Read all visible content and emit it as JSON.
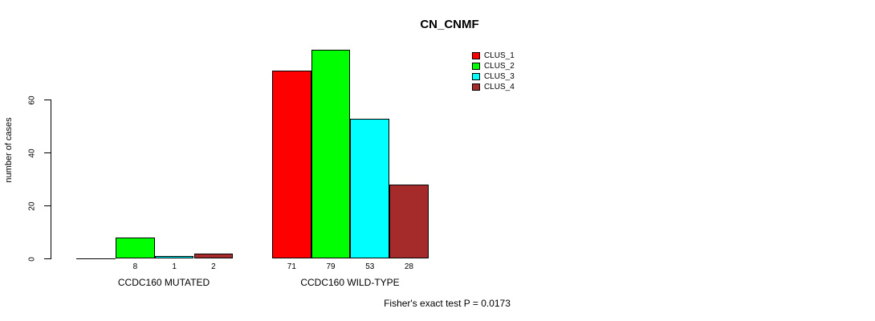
{
  "title": "CN_CNMF",
  "footer": "Fisher's exact test P = 0.0173",
  "chart_data": {
    "type": "bar",
    "title": "CN_CNMF",
    "subtitle": "",
    "xlabel": "",
    "ylabel": "number of cases",
    "categories": [
      "CCDC160 MUTATED",
      "CCDC160 WILD-TYPE"
    ],
    "series": [
      {
        "name": "CLUS_1",
        "color": "#FF0000",
        "values": [
          0,
          71
        ]
      },
      {
        "name": "CLUS_2",
        "color": "#00FF00",
        "values": [
          8,
          79
        ]
      },
      {
        "name": "CLUS_3",
        "color": "#00FFFF",
        "values": [
          1,
          53
        ]
      },
      {
        "name": "CLUS_4",
        "color": "#A52A2A",
        "values": [
          2,
          28
        ]
      }
    ],
    "bar_value_labels_shown": [
      [
        "",
        "8",
        "1",
        "2"
      ],
      [
        "71",
        "79",
        "53",
        "28"
      ]
    ],
    "yticks": [
      0,
      20,
      40,
      60
    ],
    "ylim": [
      0,
      83
    ],
    "grid": false,
    "legend_position": "top-right",
    "annotation": "Fisher's exact test P = 0.0173"
  }
}
